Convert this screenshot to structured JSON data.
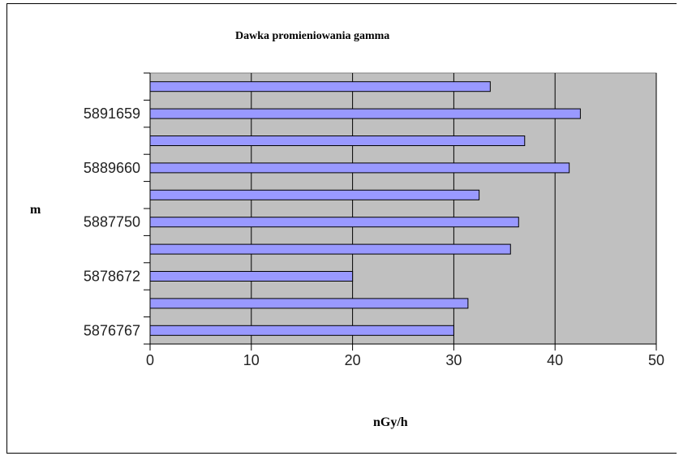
{
  "chart_data": {
    "type": "bar",
    "orientation": "horizontal",
    "title": "Dawka promieniowania gamma",
    "xlabel": "nGy/h",
    "ylabel": "m",
    "xlim": [
      0,
      50
    ],
    "xticks": [
      0,
      10,
      20,
      30,
      40,
      50
    ],
    "categories": [
      "5876767",
      "",
      "5878672",
      "",
      "5887750",
      "",
      "5889660",
      "",
      "5891659",
      ""
    ],
    "values": [
      30,
      31.4,
      20,
      35.6,
      36.4,
      32.5,
      41.4,
      37,
      42.5,
      33.6
    ],
    "grid": true,
    "legend": "none"
  },
  "colors": {
    "bar_fill": "#9999ff",
    "plot_background": "#c0c0c0",
    "gridline": "#000000"
  }
}
